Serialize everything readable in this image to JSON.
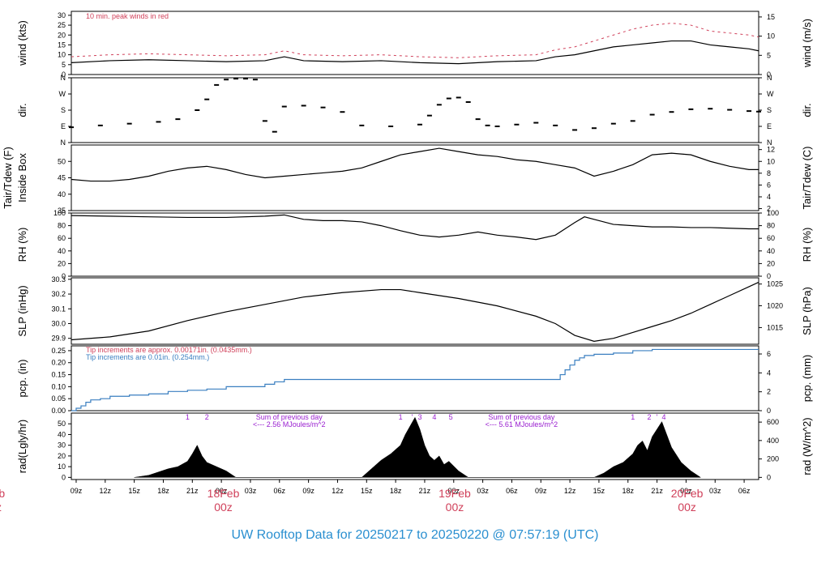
{
  "title": "UW Rooftop Data for 20250217  to  20250220 @ 07:57:19  (UTC)",
  "colors": {
    "title": "#2a8fd0",
    "accent_red": "#d0405a",
    "accent_blue": "#3a7fc0",
    "accent_purple": "#9a20d0",
    "line": "#000000"
  },
  "time_axis": {
    "start_hours": 0,
    "end_hours": 71,
    "hour_ticks": [
      {
        "h": 0.5,
        "label": "09z"
      },
      {
        "h": 3.5,
        "label": "12z"
      },
      {
        "h": 6.5,
        "label": "15z"
      },
      {
        "h": 9.5,
        "label": "18z"
      },
      {
        "h": 12.5,
        "label": "21z"
      },
      {
        "h": 15.5,
        "label": "00z"
      },
      {
        "h": 18.5,
        "label": "03z"
      },
      {
        "h": 21.5,
        "label": "06z"
      },
      {
        "h": 24.5,
        "label": "09z"
      },
      {
        "h": 27.5,
        "label": "12z"
      },
      {
        "h": 30.5,
        "label": "15z"
      },
      {
        "h": 33.5,
        "label": "18z"
      },
      {
        "h": 36.5,
        "label": "21z"
      },
      {
        "h": 39.5,
        "label": "00z"
      },
      {
        "h": 42.5,
        "label": "03z"
      },
      {
        "h": 45.5,
        "label": "06z"
      },
      {
        "h": 48.5,
        "label": "09z"
      },
      {
        "h": 51.5,
        "label": "12z"
      },
      {
        "h": 54.5,
        "label": "15z"
      },
      {
        "h": 57.5,
        "label": "18z"
      },
      {
        "h": 60.5,
        "label": "21z"
      },
      {
        "h": 63.5,
        "label": "00z"
      },
      {
        "h": 66.5,
        "label": "03z"
      },
      {
        "h": 69.5,
        "label": "06z"
      }
    ],
    "day_labels": [
      {
        "h": -7.5,
        "date": "eb",
        "time": "z"
      },
      {
        "h": 15.7,
        "date": "18Feb",
        "time": "00z"
      },
      {
        "h": 39.6,
        "date": "19Feb",
        "time": "00z"
      },
      {
        "h": 63.6,
        "date": "20Feb",
        "time": "00z"
      }
    ]
  },
  "panels": [
    {
      "id": "wind",
      "ylabel_left": "wind (kts)",
      "ylabel_right": "wind (m/s)",
      "ylim": [
        0,
        32
      ],
      "yticks_left": [
        "0",
        "5",
        "10",
        "15",
        "20",
        "25",
        "30"
      ],
      "yticks_right": [
        {
          "label": "0",
          "value": 0
        },
        {
          "label": "5",
          "value": 9.72
        },
        {
          "label": "10",
          "value": 19.44
        },
        {
          "label": "15",
          "value": 29.16
        }
      ],
      "note": "10 min. peak winds in red",
      "series": [
        {
          "name": "wind",
          "type": "line",
          "color": "#000000",
          "x": [
            0,
            4,
            8,
            12,
            16,
            20,
            22,
            24,
            28,
            32,
            36,
            40,
            44,
            48,
            50,
            52,
            54,
            56,
            58,
            60,
            62,
            64,
            66,
            68,
            70,
            71
          ],
          "y": [
            6,
            7,
            7.5,
            7,
            6.5,
            7,
            9,
            7,
            6.5,
            7,
            6,
            5.5,
            6.5,
            7,
            9,
            10,
            12,
            14,
            15,
            16,
            17,
            17,
            15,
            14,
            13,
            12
          ]
        },
        {
          "name": "peak",
          "type": "dashes",
          "color": "#d0405a",
          "x": [
            0,
            4,
            8,
            12,
            16,
            20,
            22,
            24,
            28,
            32,
            36,
            40,
            44,
            48,
            50,
            52,
            54,
            56,
            58,
            60,
            62,
            64,
            66,
            68,
            70,
            71
          ],
          "y": [
            9,
            10,
            10.5,
            10,
            9.5,
            10,
            12,
            10,
            9.5,
            10,
            9,
            8.5,
            9.5,
            10,
            12.5,
            14,
            17,
            20,
            23,
            25,
            26,
            25,
            22,
            21,
            20,
            19
          ]
        }
      ]
    },
    {
      "id": "dir",
      "ylabel_left": "dir.",
      "ylabel_right": "dir.",
      "ylim": [
        0,
        360
      ],
      "yticks_left": [
        "N",
        "E",
        "S",
        "W",
        "N"
      ],
      "series": [
        {
          "name": "direction",
          "type": "scatter",
          "color": "#000000",
          "x": [
            0,
            3,
            6,
            9,
            11,
            13,
            14,
            15,
            16,
            17,
            18,
            19,
            20,
            21,
            22,
            24,
            26,
            28,
            30,
            33,
            36,
            37,
            38,
            39,
            40,
            41,
            42,
            43,
            44,
            46,
            48,
            50,
            52,
            54,
            56,
            58,
            60,
            62,
            64,
            66,
            68,
            70,
            71
          ],
          "y": [
            85,
            95,
            105,
            115,
            130,
            180,
            240,
            320,
            350,
            355,
            355,
            350,
            120,
            60,
            200,
            205,
            195,
            170,
            95,
            90,
            100,
            150,
            210,
            245,
            250,
            225,
            130,
            95,
            90,
            100,
            110,
            95,
            70,
            80,
            105,
            120,
            155,
            170,
            185,
            188,
            182,
            175,
            172
          ]
        }
      ]
    },
    {
      "id": "temp",
      "ylabel_left": "Tair/Tdew (F)",
      "ylabel_left2": "Inside Box",
      "ylabel_right": "Tair/Tdew (C)",
      "ylim": [
        35,
        55
      ],
      "yticks_left": [
        "35",
        "40",
        "45",
        "50"
      ],
      "yticks_right": [
        {
          "label": "2",
          "value": 35.6
        },
        {
          "label": "4",
          "value": 39.2
        },
        {
          "label": "6",
          "value": 42.8
        },
        {
          "label": "8",
          "value": 46.4
        },
        {
          "label": "10",
          "value": 50
        },
        {
          "label": "12",
          "value": 53.6
        }
      ],
      "series": [
        {
          "name": "temperature",
          "type": "line",
          "color": "#000000",
          "x": [
            0,
            2,
            4,
            6,
            8,
            10,
            12,
            14,
            16,
            18,
            20,
            22,
            24,
            26,
            28,
            30,
            32,
            34,
            36,
            38,
            40,
            42,
            44,
            46,
            48,
            50,
            52,
            54,
            56,
            58,
            60,
            62,
            64,
            66,
            68,
            70,
            71
          ],
          "y": [
            44.5,
            44,
            44,
            44.5,
            45.5,
            47,
            48,
            48.5,
            47.5,
            46,
            45,
            45.5,
            46,
            46.5,
            47,
            48,
            50,
            52,
            53,
            54,
            53,
            52,
            51.5,
            50.5,
            50,
            49,
            48,
            45.5,
            47,
            49,
            52,
            52.5,
            52,
            50,
            48.5,
            47.5,
            47.5
          ]
        }
      ]
    },
    {
      "id": "rh",
      "ylabel_left": "RH (%)",
      "ylabel_right": "RH (%)",
      "ylim": [
        0,
        100
      ],
      "yticks_left": [
        "0",
        "20",
        "40",
        "60",
        "80",
        "100"
      ],
      "yticks_right": [
        {
          "label": "0",
          "value": 0
        },
        {
          "label": "20",
          "value": 20
        },
        {
          "label": "40",
          "value": 40
        },
        {
          "label": "60",
          "value": 60
        },
        {
          "label": "80",
          "value": 80
        },
        {
          "label": "100",
          "value": 100
        }
      ],
      "series": [
        {
          "name": "rh",
          "type": "line",
          "color": "#000000",
          "x": [
            0,
            4,
            8,
            12,
            16,
            20,
            22,
            24,
            26,
            28,
            30,
            32,
            34,
            36,
            38,
            40,
            42,
            44,
            46,
            48,
            50,
            52,
            53,
            54,
            56,
            58,
            60,
            62,
            64,
            66,
            68,
            70,
            71
          ],
          "y": [
            96,
            95,
            94,
            93,
            93,
            95,
            97,
            90,
            88,
            88,
            86,
            80,
            72,
            65,
            62,
            65,
            70,
            65,
            62,
            58,
            65,
            85,
            94,
            90,
            82,
            80,
            78,
            78,
            77,
            77,
            76,
            75,
            75
          ]
        }
      ]
    },
    {
      "id": "slp",
      "ylabel_left": "SLP (inHg)",
      "ylabel_right": "SLP (hPa)",
      "ylim": [
        29.86,
        30.31
      ],
      "yticks_left": [
        "29.9",
        "30.0",
        "30.1",
        "30.2",
        "30.3"
      ],
      "yticks_right": [
        {
          "label": "1015",
          "value": 29.973
        },
        {
          "label": "1020",
          "value": 30.121
        },
        {
          "label": "1025",
          "value": 30.268
        }
      ],
      "series": [
        {
          "name": "slp",
          "type": "line",
          "color": "#000000",
          "x": [
            0,
            4,
            8,
            12,
            16,
            20,
            24,
            28,
            32,
            34,
            36,
            40,
            44,
            48,
            50,
            52,
            54,
            56,
            58,
            60,
            62,
            64,
            66,
            68,
            70,
            71
          ],
          "y": [
            29.89,
            29.91,
            29.95,
            30.02,
            30.08,
            30.13,
            30.18,
            30.21,
            30.23,
            30.23,
            30.21,
            30.17,
            30.12,
            30.05,
            30.0,
            29.92,
            29.88,
            29.9,
            29.94,
            29.98,
            30.02,
            30.07,
            30.13,
            30.19,
            30.25,
            30.28
          ]
        }
      ]
    },
    {
      "id": "pcp",
      "ylabel_left": "pcp. (in)",
      "ylabel_right": "pcp. (mm)",
      "ylim": [
        0,
        0.27
      ],
      "yticks_left": [
        "0.00",
        "0.05",
        "0.10",
        "0.15",
        "0.20",
        "0.25"
      ],
      "yticks_right": [
        {
          "label": "0",
          "value": 0
        },
        {
          "label": "2",
          "value": 0.0787
        },
        {
          "label": "4",
          "value": 0.1575
        },
        {
          "label": "6",
          "value": 0.2362
        }
      ],
      "note1": "Tip increments are approx. 0.00171in. (0.0435mm.)",
      "note2": "Tip increments are 0.01in. (0.254mm.)",
      "series": [
        {
          "name": "pcp",
          "type": "step",
          "color": "#3a7fc0",
          "x": [
            0,
            0.5,
            1,
            1.5,
            2,
            3,
            4,
            6,
            8,
            10,
            12,
            14,
            16,
            18,
            20,
            21,
            22,
            24,
            28,
            32,
            36,
            40,
            44,
            46,
            48,
            50,
            50.5,
            51,
            51.5,
            52,
            52.5,
            53,
            54,
            56,
            58,
            60,
            62,
            64,
            66,
            68,
            70,
            71
          ],
          "y": [
            0,
            0.01,
            0.02,
            0.035,
            0.045,
            0.05,
            0.06,
            0.065,
            0.07,
            0.08,
            0.085,
            0.09,
            0.1,
            0.1,
            0.11,
            0.12,
            0.13,
            0.13,
            0.13,
            0.13,
            0.13,
            0.13,
            0.13,
            0.13,
            0.13,
            0.13,
            0.15,
            0.17,
            0.19,
            0.21,
            0.22,
            0.23,
            0.235,
            0.24,
            0.25,
            0.255,
            0.255,
            0.255,
            0.255,
            0.255,
            0.255,
            0.255
          ]
        }
      ]
    },
    {
      "id": "rad",
      "ylabel_left": "rad(Lgly/hr)",
      "ylabel_right": "rad (W/m^2)",
      "ylim": [
        -2,
        60
      ],
      "yticks_left": [
        "0",
        "10",
        "20",
        "30",
        "40",
        "50"
      ],
      "yticks_right": [
        {
          "label": "0",
          "value": 0
        },
        {
          "label": "200",
          "value": 17.2
        },
        {
          "label": "400",
          "value": 34.4
        },
        {
          "label": "600",
          "value": 51.6
        }
      ],
      "annotations": [
        {
          "h": 22.5,
          "text": "Sum of previous day"
        },
        {
          "h": 22.5,
          "text": "<--- 2.56 MJoules/m^2"
        },
        {
          "h": 46.5,
          "text": "Sum of previous day"
        },
        {
          "h": 46.5,
          "text": "<--- 5.61 MJoules/m^2"
        }
      ],
      "markers": [
        {
          "h": 12,
          "label": "1"
        },
        {
          "h": 14,
          "label": "2"
        },
        {
          "h": 34,
          "label": "1"
        },
        {
          "h": 35.2,
          "label": "'"
        },
        {
          "h": 36,
          "label": "3"
        },
        {
          "h": 37.5,
          "label": "4"
        },
        {
          "h": 39.2,
          "label": "5"
        },
        {
          "h": 58,
          "label": "1"
        },
        {
          "h": 59.7,
          "label": "2"
        },
        {
          "h": 60.5,
          "label": "'"
        },
        {
          "h": 61.2,
          "label": "4"
        }
      ],
      "series": [
        {
          "name": "rad",
          "type": "area",
          "color": "#000000",
          "x": [
            6.5,
            8,
            9,
            10,
            11,
            12,
            12.5,
            13,
            13.5,
            14,
            15,
            16,
            17,
            30,
            31,
            32,
            33,
            34,
            34.5,
            35,
            35.5,
            36,
            36.5,
            37,
            37.5,
            38,
            38.5,
            39,
            40,
            41,
            54,
            55,
            56,
            57,
            58,
            58.5,
            59,
            59.5,
            60,
            60.5,
            61,
            61.5,
            62,
            63,
            64,
            65
          ],
          "y": [
            0,
            2,
            5,
            8,
            10,
            15,
            22,
            30,
            20,
            14,
            10,
            6,
            0,
            0,
            8,
            16,
            22,
            30,
            40,
            48,
            56,
            45,
            30,
            20,
            16,
            20,
            12,
            15,
            6,
            0,
            0,
            4,
            10,
            14,
            22,
            30,
            34,
            25,
            38,
            45,
            52,
            40,
            28,
            14,
            6,
            0
          ]
        }
      ]
    }
  ]
}
